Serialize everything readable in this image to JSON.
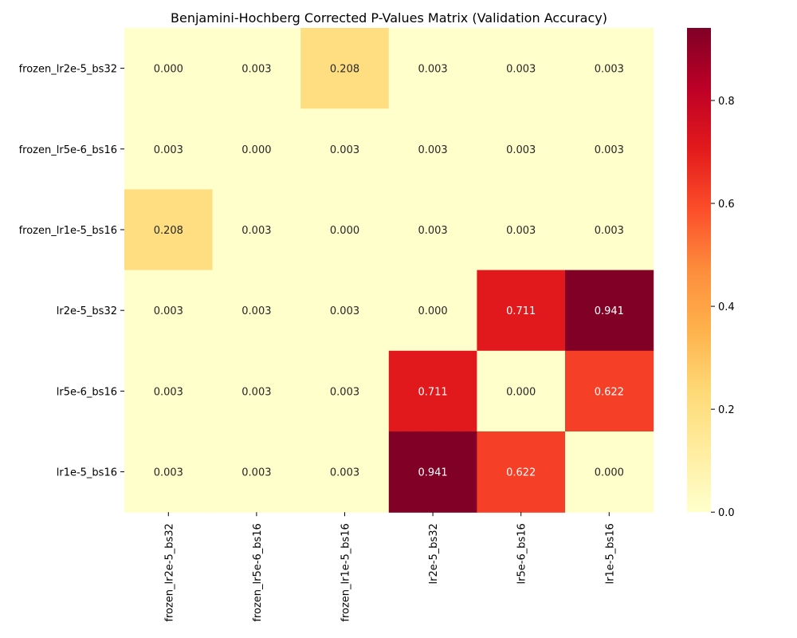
{
  "chart_data": {
    "type": "heatmap",
    "title": "Benjamini-Hochberg Corrected P-Values Matrix (Validation Accuracy)",
    "xlabel": "",
    "ylabel": "",
    "x_categories": [
      "frozen_lr2e-5_bs32",
      "frozen_lr5e-6_bs16",
      "frozen_lr1e-5_bs16",
      "lr2e-5_bs32",
      "lr5e-6_bs16",
      "lr1e-5_bs16"
    ],
    "y_categories": [
      "frozen_lr2e-5_bs32",
      "frozen_lr5e-6_bs16",
      "frozen_lr1e-5_bs16",
      "lr2e-5_bs32",
      "lr5e-6_bs16",
      "lr1e-5_bs16"
    ],
    "values": [
      [
        0.0,
        0.003,
        0.208,
        0.003,
        0.003,
        0.003
      ],
      [
        0.003,
        0.0,
        0.003,
        0.003,
        0.003,
        0.003
      ],
      [
        0.208,
        0.003,
        0.0,
        0.003,
        0.003,
        0.003
      ],
      [
        0.003,
        0.003,
        0.003,
        0.0,
        0.711,
        0.941
      ],
      [
        0.003,
        0.003,
        0.003,
        0.711,
        0.0,
        0.622
      ],
      [
        0.003,
        0.003,
        0.003,
        0.941,
        0.622,
        0.0
      ]
    ],
    "annotation_format": "0.000",
    "colormap": "YlOrRd",
    "vmin": 0,
    "vmax": 0.941,
    "colorbar_ticks": [
      0.0,
      0.2,
      0.4,
      0.6,
      0.8
    ],
    "colorbar_tick_labels": [
      "0.0",
      "0.2",
      "0.4",
      "0.6",
      "0.8"
    ],
    "grid": false,
    "legend": "colorbar-right"
  }
}
